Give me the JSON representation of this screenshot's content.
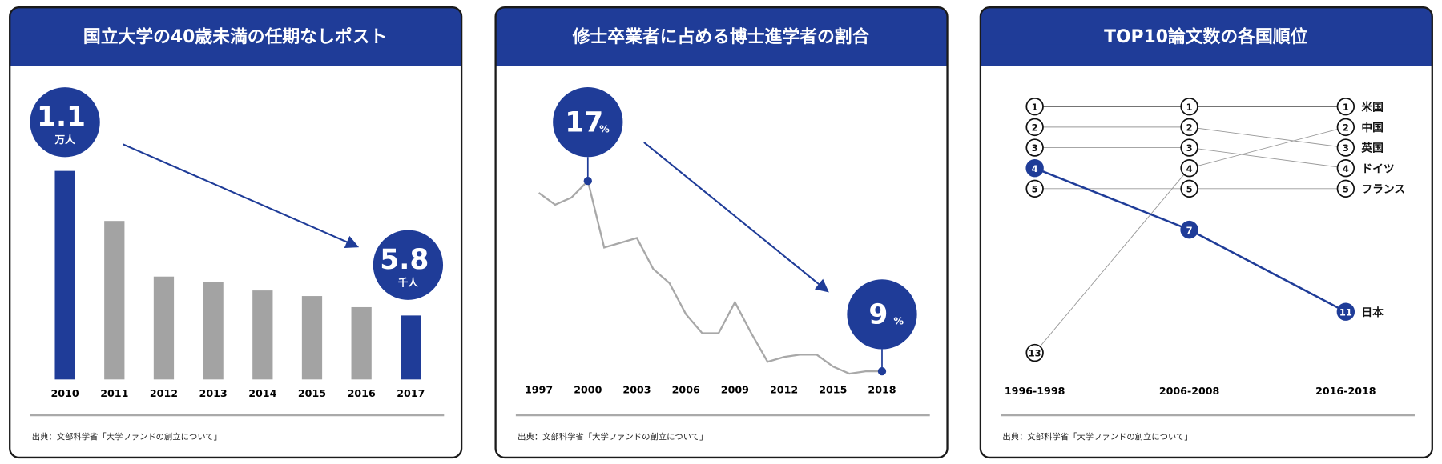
{
  "chart_data": [
    {
      "type": "bar",
      "title": "国立大学の40歳未満の任期なしポスト",
      "categories": [
        "2010",
        "2011",
        "2012",
        "2013",
        "2014",
        "2015",
        "2016",
        "2017"
      ],
      "values": [
        11000,
        9200,
        7200,
        7000,
        6700,
        6500,
        6100,
        5800
      ],
      "value_labels": [
        "1.1",
        null,
        null,
        null,
        null,
        null,
        null,
        "5.8"
      ],
      "value_units": [
        "万人",
        null,
        null,
        null,
        null,
        null,
        null,
        "千人"
      ],
      "colors": [
        "#1f3c98",
        "#a3a3a3",
        "#a3a3a3",
        "#a3a3a3",
        "#a3a3a3",
        "#a3a3a3",
        "#a3a3a3",
        "#1f3c98"
      ],
      "ylim": [
        3500,
        11000
      ],
      "source": "出典：文部科学省「大学ファンドの創立について」"
    },
    {
      "type": "line",
      "title": "修士卒業者に占める博士進学者の割合",
      "x": [
        1997,
        1998,
        1999,
        2000,
        2001,
        2002,
        2003,
        2004,
        2005,
        2006,
        2007,
        2008,
        2009,
        2010,
        2011,
        2012,
        2013,
        2014,
        2015,
        2016,
        2017,
        2018
      ],
      "values": [
        16.5,
        16.0,
        16.3,
        17,
        14.2,
        14.4,
        14.6,
        13.3,
        12.7,
        11.4,
        10.6,
        10.6,
        11.9,
        10.6,
        9.4,
        9.6,
        9.7,
        9.7,
        9.2,
        8.9,
        9.0,
        9
      ],
      "value_labels": [
        null,
        null,
        null,
        "17",
        null,
        null,
        null,
        null,
        null,
        null,
        null,
        null,
        null,
        null,
        null,
        null,
        null,
        null,
        null,
        null,
        null,
        "9"
      ],
      "value_units": [
        null,
        null,
        null,
        "%",
        null,
        null,
        null,
        null,
        null,
        null,
        null,
        null,
        null,
        null,
        null,
        null,
        null,
        null,
        null,
        null,
        null,
        "%"
      ],
      "color": "#a8a8a8",
      "xlim": [
        1997,
        2018
      ],
      "xticks": [
        1997,
        2000,
        2003,
        2006,
        2009,
        2012,
        2015,
        2018
      ],
      "ylim": [
        8,
        18
      ],
      "source": "出典：文部科学省「大学ファンドの創立について」"
    },
    {
      "type": "bump",
      "title": "TOP10論文数の各国順位",
      "categories": [
        "1996-1998",
        "2006-2008",
        "2016-2018"
      ],
      "series": [
        {
          "name": "米国",
          "color": "#222222",
          "values": [
            1,
            1,
            1
          ]
        },
        {
          "name": "中国",
          "color": "#999999",
          "values": [
            13,
            4,
            2
          ]
        },
        {
          "name": "英国",
          "color": "#999999",
          "values": [
            2,
            2,
            3
          ]
        },
        {
          "name": "ドイツ",
          "color": "#999999",
          "values": [
            3,
            3,
            4
          ]
        },
        {
          "name": "フランス",
          "color": "#999999",
          "values": [
            5,
            5,
            5
          ]
        },
        {
          "name": "日本",
          "color": "#1f3c98",
          "values": [
            4,
            7,
            11
          ]
        }
      ],
      "ylim": [
        1,
        13
      ],
      "source": "出典：文部科学省「大学ファンドの創立について」"
    }
  ]
}
